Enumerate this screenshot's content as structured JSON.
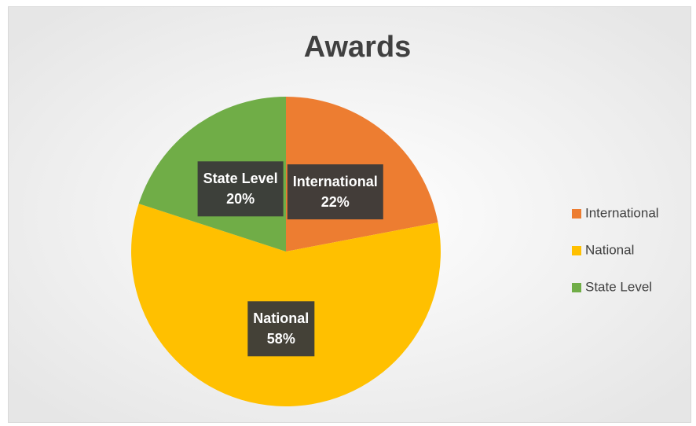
{
  "chart_data": {
    "type": "pie",
    "title": "Awards",
    "categories": [
      "International",
      "National",
      "State Level"
    ],
    "values": [
      22,
      58,
      20
    ],
    "value_labels": [
      "22%",
      "58%",
      "20%"
    ],
    "colors": [
      "#ed7d31",
      "#ffc000",
      "#70ad47"
    ],
    "legend": "right"
  }
}
